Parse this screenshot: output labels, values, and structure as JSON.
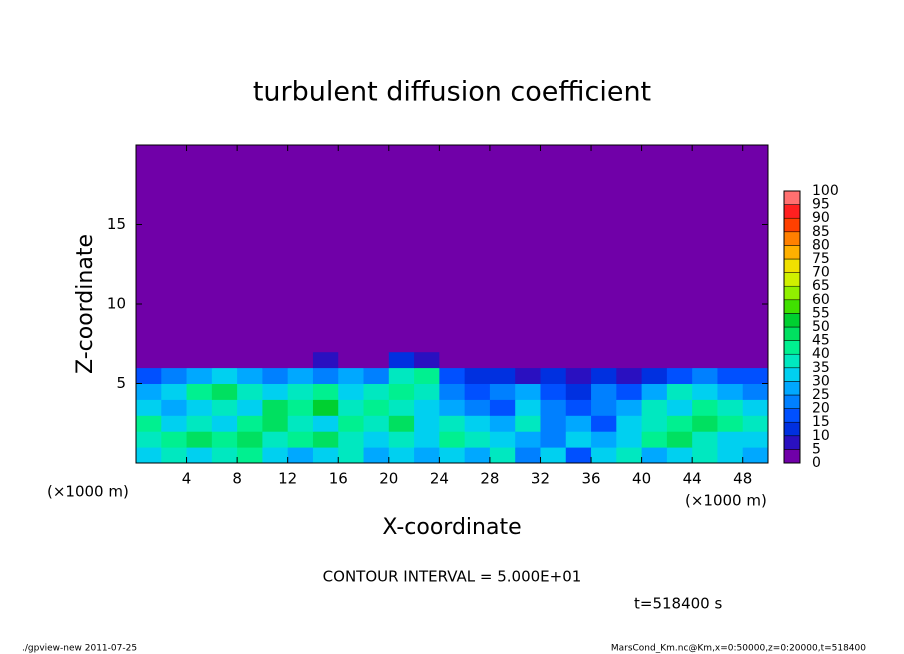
{
  "chart_data": {
    "type": "heatmap",
    "title": "turbulent diffusion coefficient",
    "xlabel": "X-coordinate",
    "ylabel": "Z-coordinate",
    "xunit": "(×1000 m)",
    "yunit": "(×1000 m)",
    "annotations": [
      "CONTOUR INTERVAL = 5.000E+01",
      "t=518400 s",
      "./gpview-new  2011-07-25",
      "MarsCond_Km.nc@Km,x=0:50000,z=0:20000,t=518400"
    ],
    "xlim": [
      0,
      50
    ],
    "ylim": [
      0,
      20
    ],
    "xticks": [
      4,
      8,
      12,
      16,
      20,
      24,
      28,
      32,
      36,
      40,
      44,
      48
    ],
    "yticks": [
      5,
      10,
      15
    ],
    "x_edges": [
      0,
      2,
      4,
      6,
      8,
      10,
      12,
      14,
      16,
      18,
      20,
      22,
      24,
      26,
      28,
      30,
      32,
      34,
      36,
      38,
      40,
      42,
      44,
      46,
      48,
      50
    ],
    "y_edges": [
      0,
      1,
      2,
      3,
      4,
      5,
      6,
      7,
      20
    ],
    "values": [
      [
        30,
        35,
        30,
        35,
        40,
        30,
        25,
        30,
        35,
        25,
        30,
        25,
        30,
        25,
        35,
        20,
        30,
        15,
        30,
        35,
        25,
        30,
        35,
        30,
        25
      ],
      [
        35,
        40,
        45,
        40,
        45,
        35,
        40,
        45,
        35,
        30,
        35,
        30,
        40,
        35,
        30,
        25,
        20,
        30,
        25,
        30,
        40,
        45,
        35,
        30,
        30
      ],
      [
        40,
        30,
        35,
        30,
        40,
        45,
        35,
        30,
        40,
        35,
        45,
        30,
        35,
        30,
        25,
        35,
        20,
        25,
        15,
        30,
        35,
        40,
        45,
        40,
        35
      ],
      [
        30,
        25,
        30,
        35,
        30,
        45,
        40,
        50,
        35,
        40,
        35,
        30,
        25,
        20,
        15,
        30,
        20,
        15,
        20,
        25,
        35,
        30,
        40,
        35,
        30
      ],
      [
        25,
        30,
        40,
        45,
        35,
        30,
        35,
        40,
        30,
        35,
        40,
        35,
        20,
        15,
        20,
        25,
        15,
        10,
        20,
        15,
        25,
        35,
        30,
        25,
        20
      ],
      [
        15,
        20,
        25,
        30,
        25,
        20,
        25,
        20,
        25,
        20,
        35,
        40,
        15,
        10,
        10,
        5,
        10,
        5,
        10,
        5,
        10,
        15,
        20,
        15,
        15
      ],
      [
        0,
        0,
        0,
        0,
        0,
        0,
        0,
        5,
        0,
        0,
        10,
        5,
        0,
        0,
        0,
        0,
        0,
        0,
        0,
        0,
        0,
        0,
        0,
        0,
        0
      ],
      [
        0,
        0,
        0,
        0,
        0,
        0,
        0,
        0,
        0,
        0,
        0,
        0,
        0,
        0,
        0,
        0,
        0,
        0,
        0,
        0,
        0,
        0,
        0,
        0,
        0
      ]
    ],
    "levels": [
      0,
      5,
      10,
      15,
      20,
      25,
      30,
      35,
      40,
      45,
      50,
      55,
      60,
      65,
      70,
      75,
      80,
      85,
      90,
      95,
      100
    ],
    "colors": [
      "#7000a8",
      "#2a10c0",
      "#0030e0",
      "#0050ff",
      "#0080ff",
      "#00a8ff",
      "#00d0f0",
      "#00e8c0",
      "#00f090",
      "#00e060",
      "#00d030",
      "#40e000",
      "#90f000",
      "#d0f000",
      "#f0e000",
      "#ffb000",
      "#ff8000",
      "#ff4000",
      "#ff2020",
      "#ff7070"
    ]
  }
}
